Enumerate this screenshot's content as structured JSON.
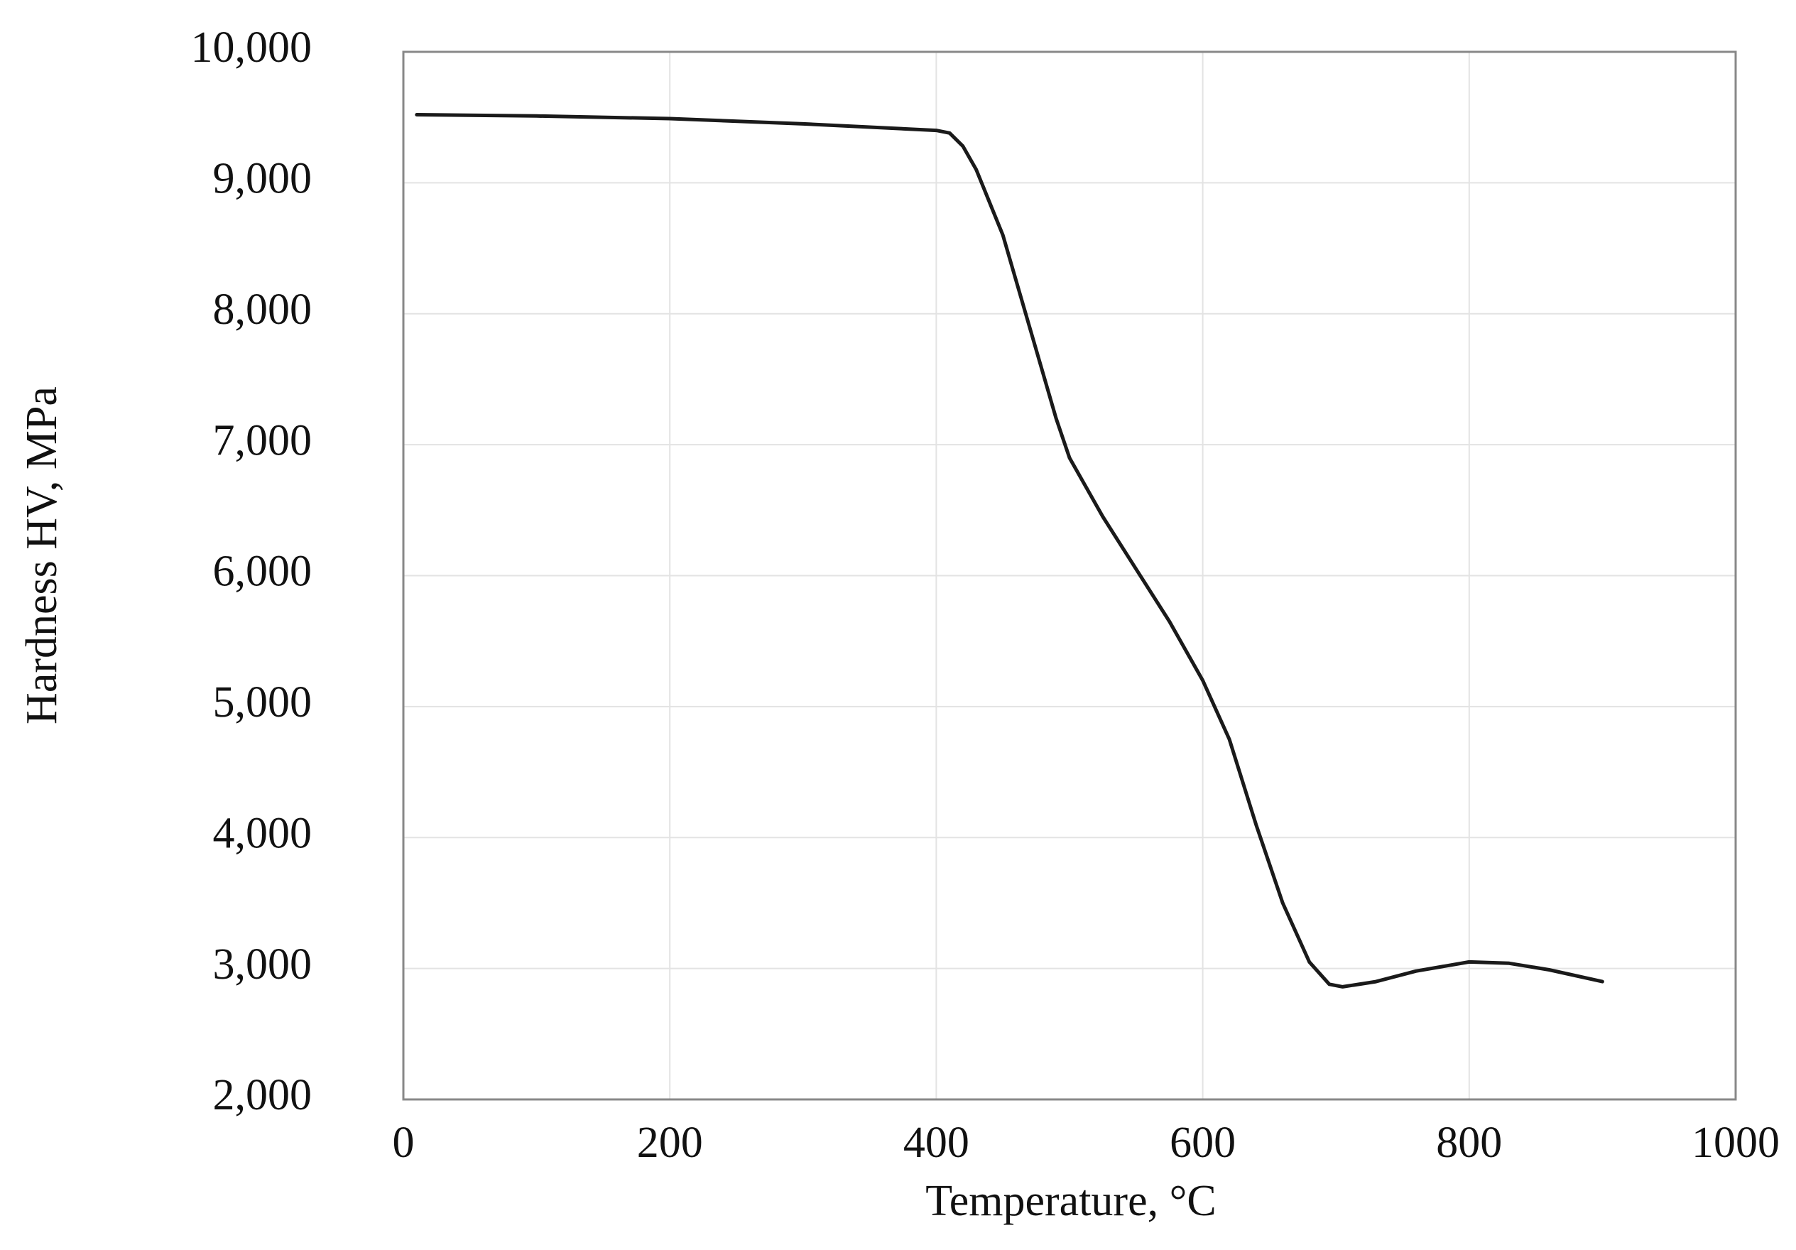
{
  "chart_data": {
    "type": "line",
    "x_label": "Temperature, °C",
    "y_label": "Hardness HV, MPa",
    "x": [
      10,
      100,
      200,
      300,
      400,
      410,
      420,
      430,
      450,
      470,
      490,
      500,
      525,
      550,
      575,
      600,
      620,
      640,
      660,
      680,
      695,
      705,
      730,
      760,
      800,
      830,
      860,
      900
    ],
    "series": [
      {
        "color": "#1a1a1a",
        "values": [
          9520,
          9510,
          9490,
          9450,
          9400,
          9380,
          9280,
          9100,
          8600,
          7900,
          7200,
          6900,
          6450,
          6050,
          5650,
          5200,
          4750,
          4100,
          3500,
          3050,
          2880,
          2860,
          2900,
          2980,
          3050,
          3040,
          2990,
          2900
        ]
      }
    ],
    "xlim": [
      0,
      1000
    ],
    "xticks": [
      0,
      200,
      400,
      600,
      800,
      1000
    ],
    "ylim": [
      2000,
      10000
    ],
    "yticks": [
      {
        "value": 2000,
        "label": "2,000"
      },
      {
        "value": 3000,
        "label": "3,000"
      },
      {
        "value": 4000,
        "label": "4,000"
      },
      {
        "value": 5000,
        "label": "5,000"
      },
      {
        "value": 6000,
        "label": "6,000"
      },
      {
        "value": 7000,
        "label": "7,000"
      },
      {
        "value": 8000,
        "label": "8,000"
      },
      {
        "value": 9000,
        "label": "9,000"
      },
      {
        "value": 10000,
        "label": "10,000"
      }
    ],
    "grid": true
  }
}
